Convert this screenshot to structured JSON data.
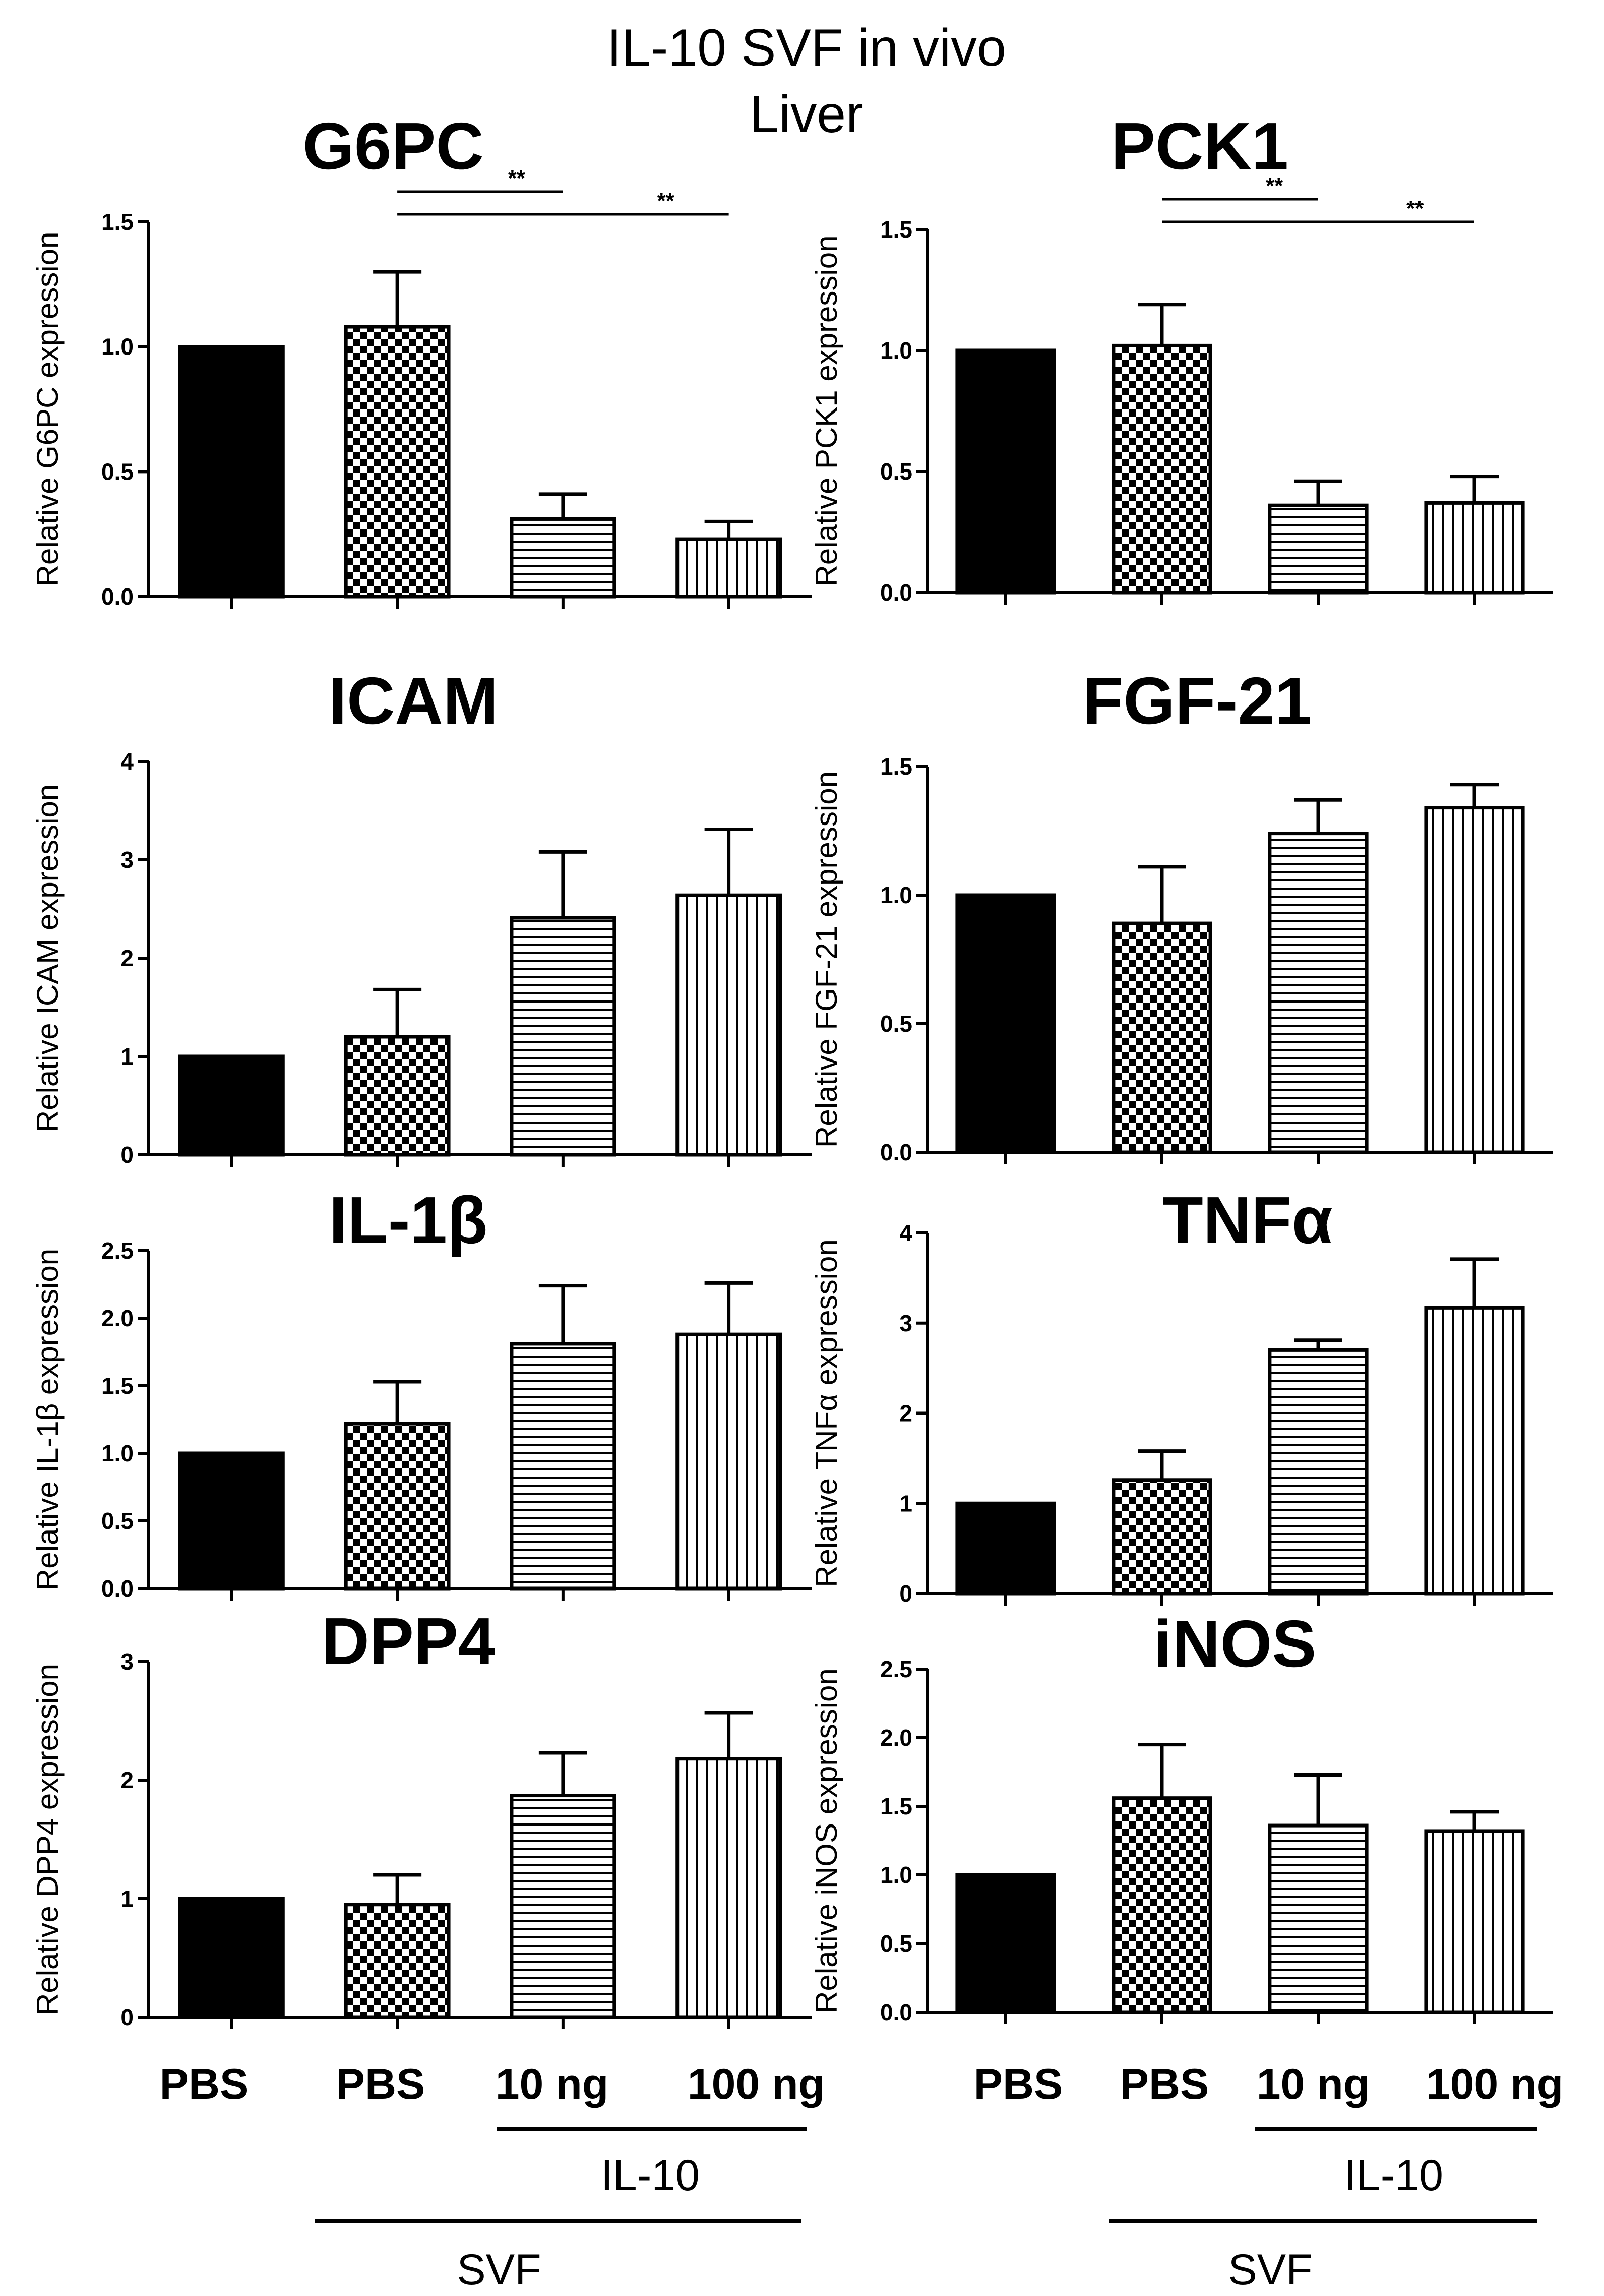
{
  "figure": {
    "title_line1": "IL-10 SVF in vivo",
    "title_line2": "Liver",
    "x_groups_left": [
      "PBS",
      "PBS",
      "10 ng",
      "100 ng"
    ],
    "x_groups_right": [
      "PBS",
      "PBS",
      "10 ng",
      "100 ng"
    ],
    "bracket_il10": "IL-10",
    "bracket_svf": "SVF"
  },
  "chart_data": [
    {
      "type": "bar",
      "title": "G6PC",
      "ylabel": "Relative G6PC expression",
      "categories": [
        "PBS",
        "SVF PBS",
        "SVF IL-10 10 ng",
        "SVF IL-10 100 ng"
      ],
      "values": [
        1.0,
        1.08,
        0.31,
        0.23
      ],
      "errors": [
        0,
        0.22,
        0.1,
        0.07
      ],
      "ylim": [
        0,
        1.5
      ],
      "yticks": [
        0.0,
        0.5,
        1.0,
        1.5
      ],
      "ytick_labels": [
        "0.0",
        "0.5",
        "1.0",
        "1.5"
      ],
      "significance": [
        {
          "from": 1,
          "to": 2,
          "label": "**"
        },
        {
          "from": 1,
          "to": 3,
          "label": "**"
        }
      ]
    },
    {
      "type": "bar",
      "title": "PCK1",
      "ylabel": "Relative PCK1 expression",
      "categories": [
        "PBS",
        "SVF PBS",
        "SVF IL-10 10 ng",
        "SVF IL-10 100 ng"
      ],
      "values": [
        1.0,
        1.02,
        0.36,
        0.37
      ],
      "errors": [
        0,
        0.17,
        0.1,
        0.11
      ],
      "ylim": [
        0,
        1.5
      ],
      "yticks": [
        0.0,
        0.5,
        1.0,
        1.5
      ],
      "ytick_labels": [
        "0.0",
        "0.5",
        "1.0",
        "1.5"
      ],
      "significance": [
        {
          "from": 1,
          "to": 2,
          "label": "**"
        },
        {
          "from": 1,
          "to": 3,
          "label": "**"
        }
      ]
    },
    {
      "type": "bar",
      "title": "ICAM",
      "ylabel": "Relative ICAM expression",
      "categories": [
        "PBS",
        "SVF PBS",
        "SVF IL-10 10 ng",
        "SVF IL-10 100 ng"
      ],
      "values": [
        1.0,
        1.2,
        2.41,
        2.64
      ],
      "errors": [
        0,
        0.48,
        0.67,
        0.67
      ],
      "ylim": [
        0,
        4
      ],
      "yticks": [
        0,
        1,
        2,
        3,
        4
      ],
      "ytick_labels": [
        "0",
        "1",
        "2",
        "3",
        "4"
      ],
      "significance": []
    },
    {
      "type": "bar",
      "title": "FGF-21",
      "ylabel": "Relative FGF-21 expression",
      "categories": [
        "PBS",
        "SVF PBS",
        "SVF IL-10 10 ng",
        "SVF IL-10 100 ng"
      ],
      "values": [
        1.0,
        0.89,
        1.24,
        1.34
      ],
      "errors": [
        0,
        0.22,
        0.13,
        0.09
      ],
      "ylim": [
        0,
        1.5
      ],
      "yticks": [
        0.0,
        0.5,
        1.0,
        1.5
      ],
      "ytick_labels": [
        "0.0",
        "0.5",
        "1.0",
        "1.5"
      ],
      "significance": []
    },
    {
      "type": "bar",
      "title": "IL-1β",
      "ylabel": "Relative IL-1β expression",
      "categories": [
        "PBS",
        "SVF PBS",
        "SVF IL-10 10 ng",
        "SVF IL-10 100 ng"
      ],
      "values": [
        1.0,
        1.22,
        1.81,
        1.88
      ],
      "errors": [
        0,
        0.31,
        0.43,
        0.38
      ],
      "ylim": [
        0,
        2.5
      ],
      "yticks": [
        0.0,
        0.5,
        1.0,
        1.5,
        2.0,
        2.5
      ],
      "ytick_labels": [
        "0.0",
        "0.5",
        "1.0",
        "1.5",
        "2.0",
        "2.5"
      ],
      "significance": []
    },
    {
      "type": "bar",
      "title": "TNFα",
      "ylabel": "Relative TNFα expression",
      "categories": [
        "PBS",
        "SVF PBS",
        "SVF IL-10 10 ng",
        "SVF IL-10 100 ng"
      ],
      "values": [
        1.0,
        1.26,
        2.7,
        3.17
      ],
      "errors": [
        0,
        0.32,
        0.11,
        0.54
      ],
      "ylim": [
        0,
        4
      ],
      "yticks": [
        0,
        1,
        2,
        3,
        4
      ],
      "ytick_labels": [
        "0",
        "1",
        "2",
        "3",
        "4"
      ],
      "significance": []
    },
    {
      "type": "bar",
      "title": "DPP4",
      "ylabel": "Relative DPP4 expression",
      "categories": [
        "PBS",
        "SVF PBS",
        "SVF IL-10 10 ng",
        "SVF IL-10 100 ng"
      ],
      "values": [
        1.0,
        0.95,
        1.87,
        2.18
      ],
      "errors": [
        0,
        0.25,
        0.36,
        0.39
      ],
      "ylim": [
        0,
        3
      ],
      "yticks": [
        0,
        1,
        2,
        3
      ],
      "ytick_labels": [
        "0",
        "1",
        "2",
        "3"
      ],
      "significance": []
    },
    {
      "type": "bar",
      "title": "iNOS",
      "ylabel": "Relative iNOS expression",
      "categories": [
        "PBS",
        "SVF PBS",
        "SVF IL-10 10 ng",
        "SVF IL-10 100 ng"
      ],
      "values": [
        1.0,
        1.56,
        1.36,
        1.32
      ],
      "errors": [
        0,
        0.39,
        0.37,
        0.14
      ],
      "ylim": [
        0,
        2.5
      ],
      "yticks": [
        0.0,
        0.5,
        1.0,
        1.5,
        2.0,
        2.5
      ],
      "ytick_labels": [
        "0.0",
        "0.5",
        "1.0",
        "1.5",
        "2.0",
        "2.5"
      ],
      "significance": []
    }
  ]
}
